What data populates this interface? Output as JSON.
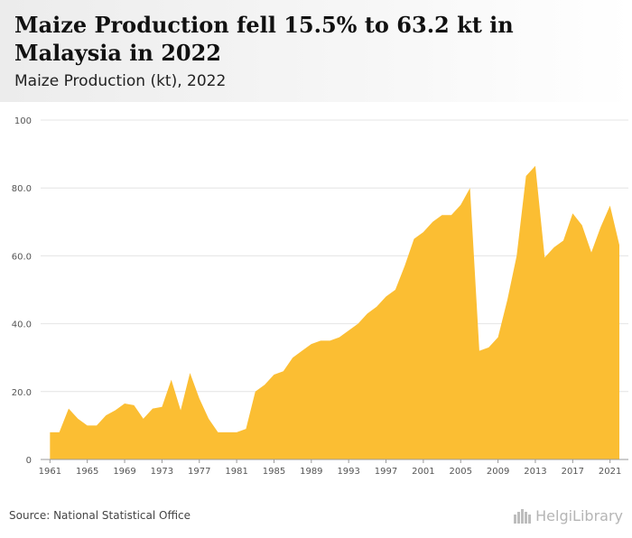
{
  "header": {
    "title": "Maize Production fell 15.5% to 63.2 kt in Malaysia in 2022",
    "subtitle": "Maize Production (kt), 2022"
  },
  "footer": {
    "source": "Source: National Statistical Office",
    "brand": "HelgiLibrary",
    "brand_icon": "helgi-building-icon"
  },
  "colors": {
    "area": "#fbbe33",
    "grid": "#e4e4e4",
    "axis": "#999999"
  },
  "chart_data": {
    "type": "area",
    "title": "Maize Production fell 15.5% to 63.2 kt in Malaysia in 2022",
    "subtitle": "Maize Production (kt), 2022",
    "xlabel": "",
    "ylabel": "",
    "x": [
      1961,
      1962,
      1963,
      1964,
      1965,
      1966,
      1967,
      1968,
      1969,
      1970,
      1971,
      1972,
      1973,
      1974,
      1975,
      1976,
      1977,
      1978,
      1979,
      1980,
      1981,
      1982,
      1983,
      1984,
      1985,
      1986,
      1987,
      1988,
      1989,
      1990,
      1991,
      1992,
      1993,
      1994,
      1995,
      1996,
      1997,
      1998,
      1999,
      2000,
      2001,
      2002,
      2003,
      2004,
      2005,
      2006,
      2007,
      2008,
      2009,
      2010,
      2011,
      2012,
      2013,
      2014,
      2015,
      2016,
      2017,
      2018,
      2019,
      2020,
      2021,
      2022
    ],
    "series": [
      {
        "values": [
          8,
          8,
          15,
          12,
          10,
          10,
          13,
          14.5,
          16.5,
          16,
          12,
          15,
          15.5,
          23.5,
          14.5,
          25.5,
          18,
          12,
          8,
          8,
          8,
          9,
          20,
          22,
          25,
          26,
          30,
          32,
          34,
          35,
          35,
          36,
          38,
          40,
          43,
          45,
          48,
          50,
          57,
          65,
          67,
          70,
          72,
          72,
          75,
          80,
          32,
          33,
          36,
          47,
          60,
          83.5,
          86.5,
          59.5,
          62.5,
          64.5,
          72.5,
          69,
          61,
          68.5,
          74.8,
          63.2
        ]
      }
    ],
    "ylim": [
      0,
      100
    ],
    "xlim": [
      1960,
      2022
    ],
    "yticks": [
      0,
      20,
      40,
      60,
      80,
      100
    ],
    "ytick_labels": [
      "0",
      "20.0",
      "40.0",
      "60.0",
      "80.0",
      "100"
    ],
    "xticks": [
      1961,
      1965,
      1969,
      1973,
      1977,
      1981,
      1985,
      1989,
      1993,
      1997,
      2001,
      2005,
      2009,
      2013,
      2017,
      2021
    ],
    "xtick_labels": [
      "1961",
      "1965",
      "1969",
      "1973",
      "1977",
      "1981",
      "1985",
      "1989",
      "1993",
      "1997",
      "2001",
      "2005",
      "2009",
      "2013",
      "2017",
      "2021"
    ],
    "grid": true,
    "legend": "none"
  }
}
